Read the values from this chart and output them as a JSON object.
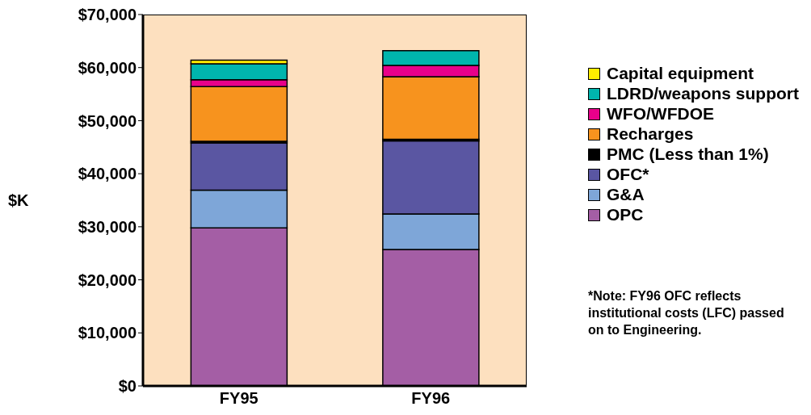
{
  "chart_data": {
    "type": "bar",
    "stacked": true,
    "ylabel": "$K",
    "categories": [
      "FY95",
      "FY96"
    ],
    "ylim": [
      0,
      70000
    ],
    "yticks": [
      {
        "value": 0,
        "label": "$0"
      },
      {
        "value": 10000,
        "label": "$10,000"
      },
      {
        "value": 20000,
        "label": "$20,000"
      },
      {
        "value": 30000,
        "label": "$30,000"
      },
      {
        "value": 40000,
        "label": "$40,000"
      },
      {
        "value": 50000,
        "label": "$50,000"
      },
      {
        "value": 60000,
        "label": "$60,000"
      },
      {
        "value": 70000,
        "label": "$70,000"
      }
    ],
    "legend": "right",
    "series": [
      {
        "name": "OPC",
        "color": "#a45ea5",
        "values": [
          29800,
          25700
        ]
      },
      {
        "name": "G&A",
        "color": "#7ea6d8",
        "values": [
          7100,
          6700
        ]
      },
      {
        "name": "OFC*",
        "color": "#5a56a2",
        "values": [
          8900,
          13800
        ]
      },
      {
        "name": "PMC (Less than 1%)",
        "color": "#000000",
        "values": [
          300,
          300
        ]
      },
      {
        "name": "Recharges",
        "color": "#f7931e",
        "values": [
          10300,
          11800
        ]
      },
      {
        "name": "WFO/WFDOE",
        "color": "#e8008a",
        "values": [
          1300,
          2100
        ]
      },
      {
        "name": "LDRD/weapons support",
        "color": "#00b5ad",
        "values": [
          3000,
          2800
        ]
      },
      {
        "name": "Capital equipment",
        "color": "#ffee00",
        "values": [
          700,
          0
        ]
      }
    ],
    "annotations": [
      "*Note: FY96 OFC reflects institutional costs (LFC) passed on to Engineering."
    ]
  }
}
